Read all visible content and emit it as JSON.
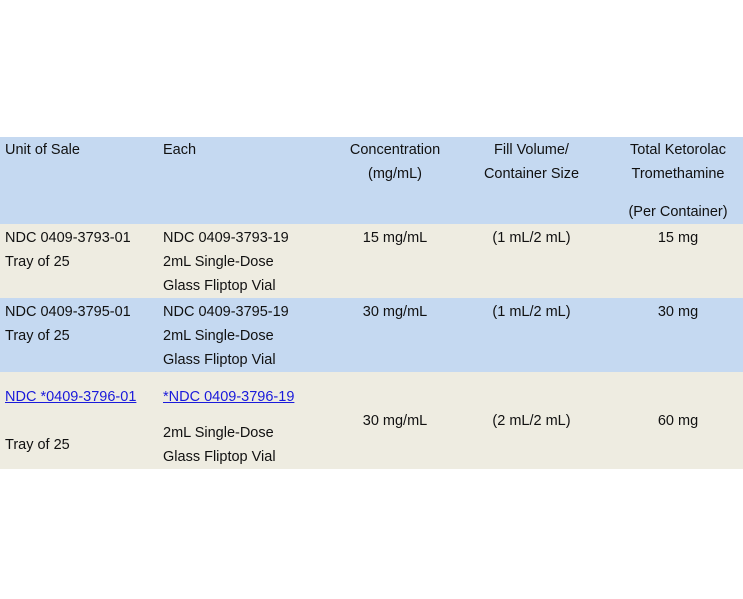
{
  "headers": {
    "unit_of_sale": "Unit of Sale",
    "each": "Each",
    "concentration": [
      "Concentration",
      "(mg/mL)"
    ],
    "fill_volume": [
      "Fill Volume/",
      "Container Size"
    ],
    "total": [
      "Total Ketorolac",
      "Tromethamine",
      "(Per Container)"
    ]
  },
  "rows": [
    {
      "unit_ndc": "NDC 0409-3793-01",
      "unit_pack": "Tray of 25",
      "each_ndc": "NDC 0409-3793-19",
      "each_desc1": "2mL Single-Dose",
      "each_desc2": "Glass Fliptop Vial",
      "concentration": "15 mg/mL",
      "fill": "(1 mL/2 mL)",
      "total": "15 mg"
    },
    {
      "unit_ndc": "NDC 0409-3795-01",
      "unit_pack": "Tray of 25",
      "each_ndc": "NDC 0409-3795-19",
      "each_desc1": "2mL Single-Dose",
      "each_desc2": "Glass Fliptop Vial",
      "concentration": "30 mg/mL",
      "fill": "(1 mL/2 mL)",
      "total": "30 mg"
    },
    {
      "unit_ndc": "NDC *0409-3796-01",
      "unit_pack": "Tray of 25",
      "each_ndc": "*NDC 0409-3796-19",
      "each_desc1": "2mL Single-Dose",
      "each_desc2": "Glass Fliptop Vial",
      "concentration": "30 mg/mL",
      "fill": "(2 mL/2 mL)",
      "total": "60 mg"
    }
  ],
  "colors": {
    "header_row": "#c5d9f1",
    "alt_row": "#eeece1",
    "link": "#1a1adb"
  }
}
